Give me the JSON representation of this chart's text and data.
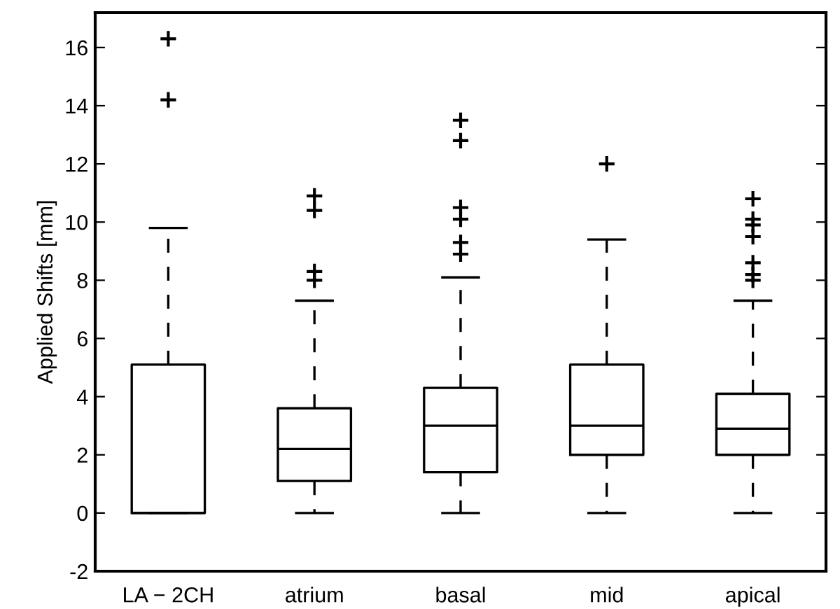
{
  "chart_data": {
    "type": "box",
    "ylabel": "Applied Shifts [mm]",
    "categories": [
      "LA − 2CH",
      "atrium",
      "basal",
      "mid",
      "apical"
    ],
    "boxes": [
      {
        "low": 0,
        "q1": 0,
        "median": 0,
        "q3": 5.1,
        "high": 9.8,
        "outliers": [
          16.3,
          14.2
        ]
      },
      {
        "low": 0,
        "q1": 1.1,
        "median": 2.2,
        "q3": 3.6,
        "high": 7.3,
        "outliers": [
          10.9,
          10.4,
          8.3,
          8.0
        ]
      },
      {
        "low": 0,
        "q1": 1.4,
        "median": 3.0,
        "q3": 4.3,
        "high": 8.1,
        "outliers": [
          13.5,
          12.8,
          10.5,
          10.1,
          9.3,
          8.9
        ]
      },
      {
        "low": 0,
        "q1": 2.0,
        "median": 3.0,
        "q3": 5.1,
        "high": 9.4,
        "outliers": [
          12.0
        ]
      },
      {
        "low": 0,
        "q1": 2.0,
        "median": 2.9,
        "q3": 4.1,
        "high": 7.3,
        "outliers": [
          10.8,
          10.1,
          9.9,
          9.5,
          8.6,
          8.2,
          8.0
        ]
      }
    ],
    "color": "#000000",
    "ylim": [
      -2,
      17.2
    ],
    "yticks": [
      -2,
      0,
      2,
      4,
      6,
      8,
      10,
      12,
      14,
      16
    ],
    "grid": false,
    "legend": false,
    "marker": "cross",
    "line_style": "dashed"
  }
}
